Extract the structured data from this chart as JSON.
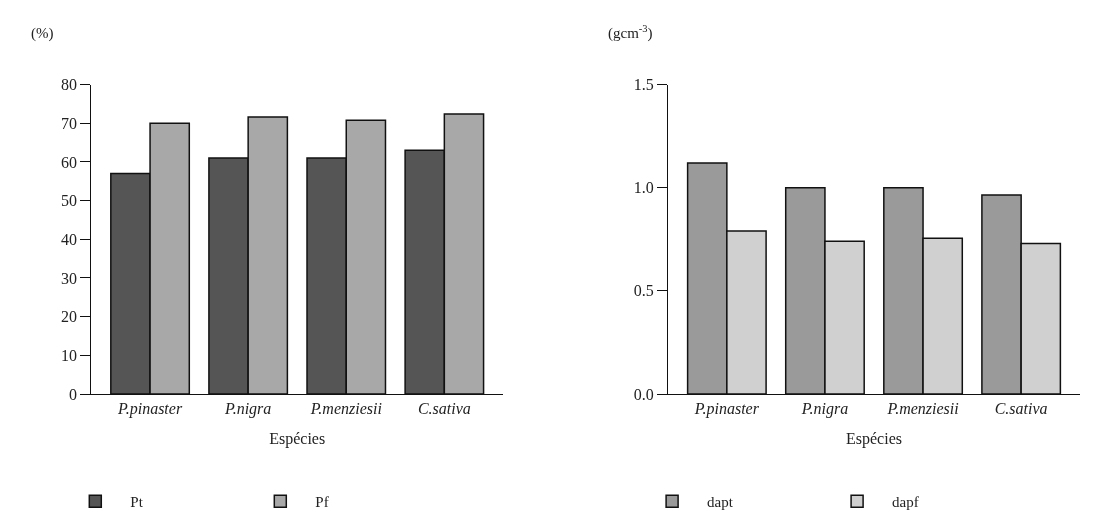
{
  "chart_data": [
    {
      "type": "bar",
      "ylabel": "(%)",
      "xlabel": "Espécies",
      "categories": [
        "P.pinaster",
        "P.nigra",
        "P.menziesii",
        "C.sativa"
      ],
      "series": [
        {
          "name": "Pt",
          "color": "#555555",
          "values": [
            57,
            61,
            61,
            63
          ]
        },
        {
          "name": "Pf",
          "color": "#a8a8a8",
          "values": [
            70,
            71.6,
            70.8,
            72.4
          ]
        }
      ],
      "ylim": [
        0,
        80
      ],
      "yticks": [
        0,
        10,
        20,
        30,
        40,
        50,
        60,
        70,
        80
      ],
      "legend": "bottom"
    },
    {
      "type": "bar",
      "ylabel": "(gcm$^{-3}$)",
      "xlabel": "Espécies",
      "categories": [
        "P.pinaster",
        "P.nigra",
        "P.menziesii",
        "C.sativa"
      ],
      "series": [
        {
          "name": "dapt",
          "color": "#9a9a9a",
          "values": [
            1.12,
            1.0,
            1.0,
            0.965
          ]
        },
        {
          "name": "dapf",
          "color": "#d0d0d0",
          "values": [
            0.79,
            0.74,
            0.755,
            0.73
          ]
        }
      ],
      "ylim": [
        0,
        1.5
      ],
      "yticks": [
        {
          "value": 0,
          "label": "0.0"
        },
        {
          "value": 0.5,
          "label": "0.5"
        },
        {
          "value": 1.0,
          "label": "1.0"
        },
        {
          "value": 1.5,
          "label": "1.5"
        }
      ],
      "legend": "bottom"
    }
  ]
}
